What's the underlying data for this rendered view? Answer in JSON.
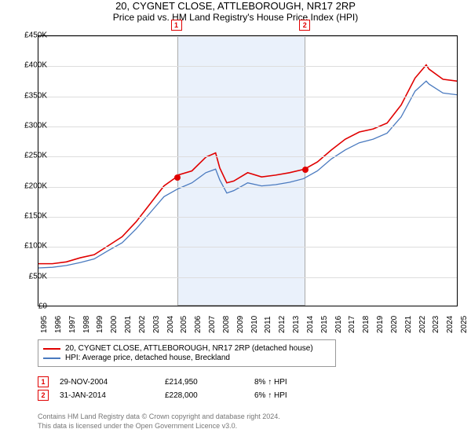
{
  "title": "20, CYGNET CLOSE, ATTLEBOROUGH, NR17 2RP",
  "subtitle": "Price paid vs. HM Land Registry's House Price Index (HPI)",
  "chart": {
    "type": "line",
    "background_color": "#ffffff",
    "grid_color": "#dddddd",
    "ylim": [
      0,
      450000
    ],
    "ytick_step": 50000,
    "yticks": [
      "£0",
      "£50K",
      "£100K",
      "£150K",
      "£200K",
      "£250K",
      "£300K",
      "£350K",
      "£400K",
      "£450K"
    ],
    "xlim": [
      1995,
      2025
    ],
    "xticks": [
      "1995",
      "1996",
      "1997",
      "1998",
      "1999",
      "2000",
      "2001",
      "2002",
      "2003",
      "2004",
      "2005",
      "2006",
      "2007",
      "2008",
      "2009",
      "2010",
      "2011",
      "2012",
      "2013",
      "2014",
      "2015",
      "2016",
      "2017",
      "2018",
      "2019",
      "2020",
      "2021",
      "2022",
      "2023",
      "2024",
      "2025"
    ],
    "highlight_band": {
      "start": 2004.9,
      "end": 2014.08,
      "fill": "#eaf1fb",
      "border": "#aaaaaa"
    },
    "series": [
      {
        "name": "20, CYGNET CLOSE, ATTLEBOROUGH, NR17 2RP (detached house)",
        "color": "#e00000",
        "line_width": 1.6,
        "points": [
          [
            1995,
            70000
          ],
          [
            1996,
            70000
          ],
          [
            1997,
            73000
          ],
          [
            1998,
            80000
          ],
          [
            1999,
            85000
          ],
          [
            2000,
            100000
          ],
          [
            2001,
            115000
          ],
          [
            2002,
            140000
          ],
          [
            2003,
            170000
          ],
          [
            2004,
            200000
          ],
          [
            2004.9,
            214950
          ],
          [
            2005,
            218000
          ],
          [
            2006,
            225000
          ],
          [
            2007,
            248000
          ],
          [
            2007.7,
            255000
          ],
          [
            2008,
            230000
          ],
          [
            2008.5,
            205000
          ],
          [
            2009,
            208000
          ],
          [
            2010,
            222000
          ],
          [
            2011,
            215000
          ],
          [
            2012,
            218000
          ],
          [
            2013,
            222000
          ],
          [
            2014.08,
            228000
          ],
          [
            2015,
            240000
          ],
          [
            2016,
            260000
          ],
          [
            2017,
            278000
          ],
          [
            2018,
            290000
          ],
          [
            2019,
            295000
          ],
          [
            2020,
            305000
          ],
          [
            2021,
            335000
          ],
          [
            2022,
            380000
          ],
          [
            2022.8,
            402000
          ],
          [
            2023,
            395000
          ],
          [
            2024,
            378000
          ],
          [
            2025,
            375000
          ]
        ]
      },
      {
        "name": "HPI: Average price, detached house, Breckland",
        "color": "#4a7abf",
        "line_width": 1.3,
        "points": [
          [
            1995,
            63000
          ],
          [
            1996,
            64000
          ],
          [
            1997,
            67000
          ],
          [
            1998,
            72000
          ],
          [
            1999,
            78000
          ],
          [
            2000,
            92000
          ],
          [
            2001,
            105000
          ],
          [
            2002,
            128000
          ],
          [
            2003,
            155000
          ],
          [
            2004,
            182000
          ],
          [
            2005,
            195000
          ],
          [
            2006,
            205000
          ],
          [
            2007,
            222000
          ],
          [
            2007.7,
            228000
          ],
          [
            2008,
            210000
          ],
          [
            2008.5,
            188000
          ],
          [
            2009,
            192000
          ],
          [
            2010,
            205000
          ],
          [
            2011,
            200000
          ],
          [
            2012,
            202000
          ],
          [
            2013,
            206000
          ],
          [
            2014,
            212000
          ],
          [
            2015,
            225000
          ],
          [
            2016,
            245000
          ],
          [
            2017,
            260000
          ],
          [
            2018,
            272000
          ],
          [
            2019,
            278000
          ],
          [
            2020,
            288000
          ],
          [
            2021,
            315000
          ],
          [
            2022,
            358000
          ],
          [
            2022.8,
            375000
          ],
          [
            2023,
            370000
          ],
          [
            2024,
            355000
          ],
          [
            2025,
            352000
          ]
        ]
      }
    ],
    "markers": [
      {
        "label": "1",
        "x": 2004.9,
        "y": 214950,
        "color": "#e00000"
      },
      {
        "label": "2",
        "x": 2014.08,
        "y": 228000,
        "color": "#e00000"
      }
    ]
  },
  "legend": {
    "items": [
      {
        "color": "#e00000",
        "label": "20, CYGNET CLOSE, ATTLEBOROUGH, NR17 2RP (detached house)"
      },
      {
        "color": "#4a7abf",
        "label": "HPI: Average price, detached house, Breckland"
      }
    ]
  },
  "transactions": [
    {
      "marker": "1",
      "date": "29-NOV-2004",
      "price": "£214,950",
      "pct": "8% ↑ HPI"
    },
    {
      "marker": "2",
      "date": "31-JAN-2014",
      "price": "£228,000",
      "pct": "6% ↑ HPI"
    }
  ],
  "footer_line1": "Contains HM Land Registry data © Crown copyright and database right 2024.",
  "footer_line2": "This data is licensed under the Open Government Licence v3.0."
}
